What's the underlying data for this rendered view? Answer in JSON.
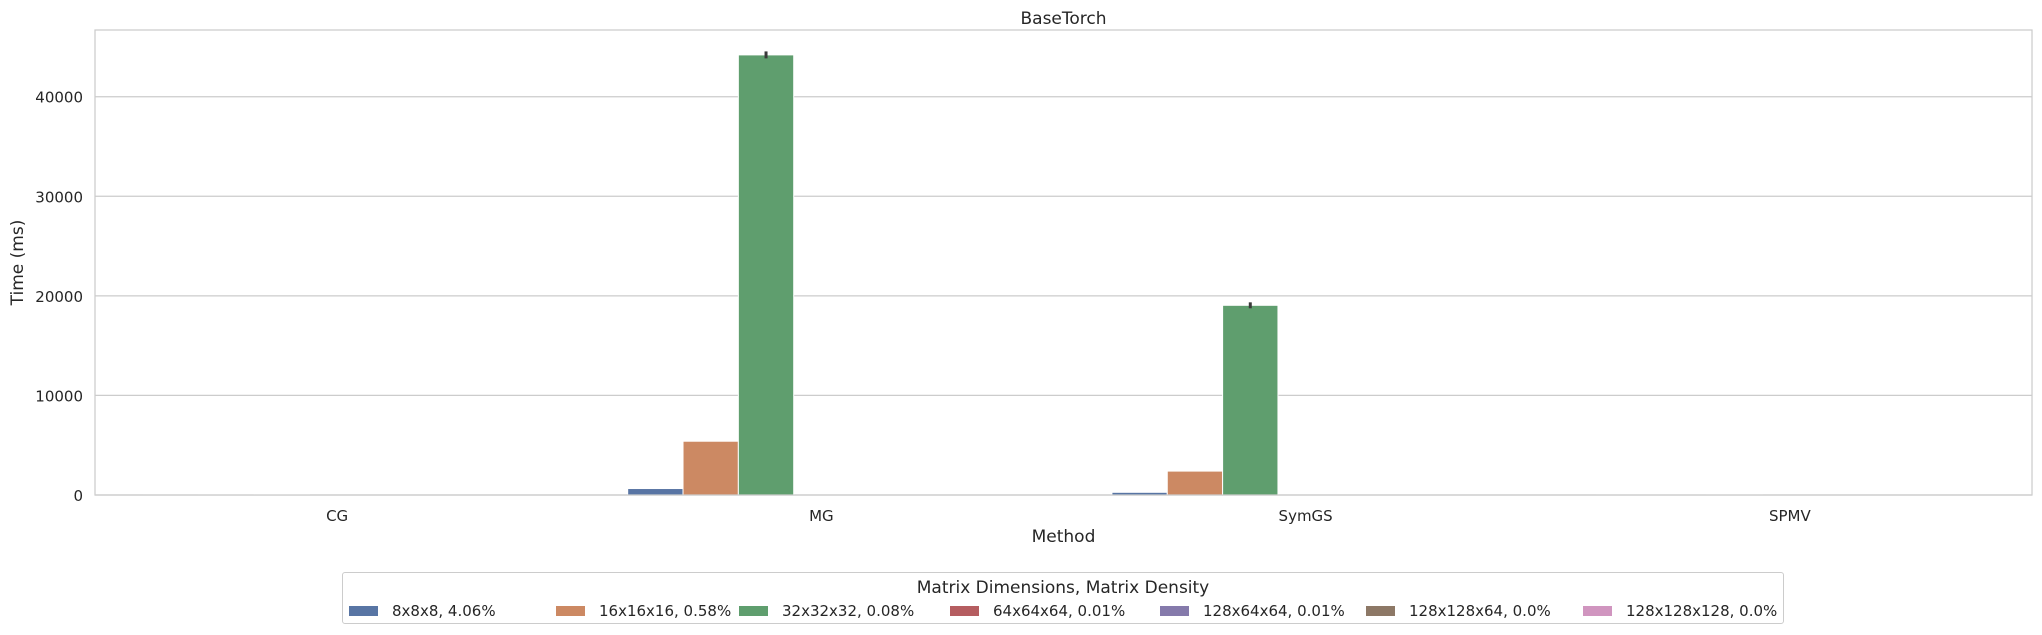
{
  "chart_data": {
    "type": "bar",
    "title": "BaseTorch",
    "xlabel": "Method",
    "ylabel": "Time (ms)",
    "categories": [
      "CG",
      "MG",
      "SymGS",
      "SPMV"
    ],
    "ylim": [
      0,
      46700
    ],
    "yticks": [
      0,
      10000,
      20000,
      30000,
      40000
    ],
    "grid": true,
    "legend": {
      "title": "Matrix Dimensions, Matrix Density",
      "placement": "bottom-center"
    },
    "series": [
      {
        "name": "8x8x8, 4.06%",
        "color": "#5875a4",
        "values": [
          10,
          650,
          270,
          5
        ],
        "errors": [
          0,
          0,
          0,
          0
        ]
      },
      {
        "name": "16x16x16, 0.58%",
        "color": "#cc8963",
        "values": [
          20,
          5400,
          2400,
          8
        ],
        "errors": [
          0,
          0,
          0,
          0
        ]
      },
      {
        "name": "32x32x32, 0.08%",
        "color": "#5f9e6e",
        "values": [
          40,
          44200,
          19050,
          15
        ],
        "errors": [
          0,
          350,
          300,
          0
        ]
      },
      {
        "name": "64x64x64, 0.01%",
        "color": "#b55d60",
        "values": [
          0,
          0,
          0,
          0
        ],
        "errors": [
          0,
          0,
          0,
          0
        ]
      },
      {
        "name": "128x64x64, 0.01%",
        "color": "#857aab",
        "values": [
          0,
          0,
          0,
          0
        ],
        "errors": [
          0,
          0,
          0,
          0
        ]
      },
      {
        "name": "128x128x64, 0.0%",
        "color": "#8d7866",
        "values": [
          0,
          0,
          0,
          0
        ],
        "errors": [
          0,
          0,
          0,
          0
        ]
      },
      {
        "name": "128x128x128, 0.0%",
        "color": "#d095bf",
        "values": [
          0,
          0,
          0,
          0
        ],
        "errors": [
          0,
          0,
          0,
          0
        ]
      }
    ]
  }
}
